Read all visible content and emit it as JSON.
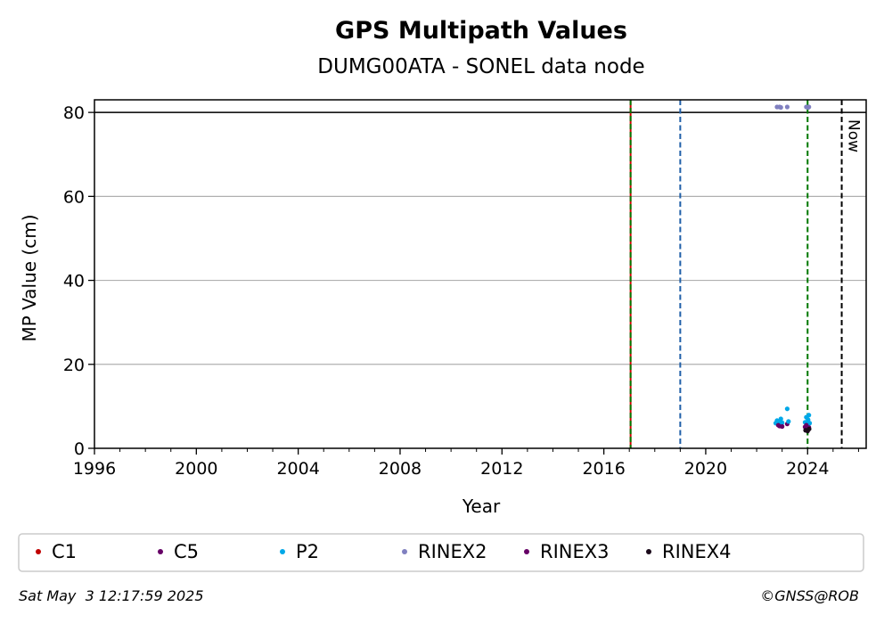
{
  "chart_data": {
    "type": "scatter",
    "title": "GPS Multipath Values",
    "subtitle": "DUMG00ATA - SONEL data node",
    "xlabel": "Year",
    "ylabel": "MP Value (cm)",
    "xlim": [
      1996,
      2026.3
    ],
    "ylim": [
      0,
      83
    ],
    "xticks": [
      1996,
      2000,
      2004,
      2008,
      2012,
      2016,
      2020,
      2024
    ],
    "yticks": [
      0,
      20,
      40,
      60,
      80
    ],
    "grid": "y",
    "legend_position": "bottom",
    "reference_line": {
      "y": 80,
      "color": "#000000"
    },
    "vertical_lines": [
      {
        "x": 2017.05,
        "colors": [
          "#cc0000",
          "#007700"
        ],
        "style": "dashed"
      },
      {
        "x": 2019.0,
        "color": "#1f5fa8",
        "style": "dashed"
      },
      {
        "x": 2024.0,
        "color": "#007700",
        "style": "dashed"
      },
      {
        "x": 2025.34,
        "color": "#000000",
        "style": "dashed",
        "label": "Now"
      }
    ],
    "series": [
      {
        "name": "C1",
        "color": "#c00000",
        "points": []
      },
      {
        "name": "C5",
        "color": "#660066",
        "points": [
          [
            2022.9,
            5.3
          ],
          [
            2022.95,
            5.6
          ],
          [
            2023.2,
            5.8
          ],
          [
            2023.9,
            5.1
          ],
          [
            2024.0,
            5.4
          ],
          [
            2024.05,
            5.0
          ]
        ]
      },
      {
        "name": "P2",
        "color": "#00a8e8",
        "points": [
          [
            2022.75,
            6.0
          ],
          [
            2022.8,
            6.6
          ],
          [
            2022.85,
            5.8
          ],
          [
            2022.9,
            6.3
          ],
          [
            2022.95,
            7.0
          ],
          [
            2023.0,
            6.1
          ],
          [
            2023.2,
            9.4
          ],
          [
            2023.25,
            6.4
          ],
          [
            2023.9,
            6.2
          ],
          [
            2023.95,
            7.4
          ],
          [
            2024.0,
            5.9
          ],
          [
            2024.02,
            6.8
          ],
          [
            2024.05,
            7.9
          ],
          [
            2024.08,
            6.0
          ]
        ]
      },
      {
        "name": "RINEX2",
        "color": "#8080c0",
        "points": [
          [
            2022.8,
            81.3
          ],
          [
            2022.9,
            81.3
          ],
          [
            2022.95,
            81.2
          ],
          [
            2023.2,
            81.3
          ],
          [
            2023.95,
            81.3
          ],
          [
            2024.02,
            81.2
          ],
          [
            2024.05,
            81.3
          ]
        ]
      },
      {
        "name": "RINEX3",
        "color": "#660066",
        "points": [
          [
            2022.85,
            5.5
          ],
          [
            2023.0,
            5.2
          ],
          [
            2023.95,
            5.5
          ],
          [
            2024.03,
            4.9
          ]
        ]
      },
      {
        "name": "RINEX4",
        "color": "#1a0a1a",
        "points": [
          [
            2023.92,
            4.3
          ],
          [
            2024.0,
            4.1
          ],
          [
            2024.06,
            4.6
          ]
        ]
      }
    ]
  },
  "footer": {
    "timestamp": "Sat May  3 12:17:59 2025",
    "credit": "©GNSS@ROB"
  }
}
